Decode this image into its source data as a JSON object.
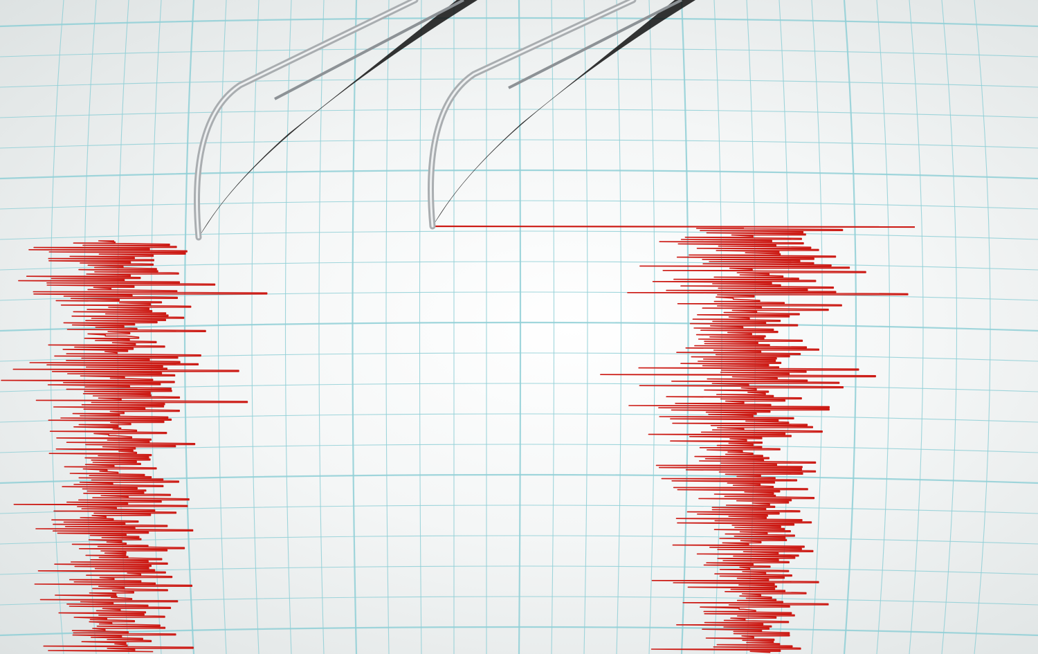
{
  "scene": {
    "subject": "seismograph",
    "colors": {
      "paper": "#f4f6f6",
      "grid": "#8fcfd6",
      "trace": "#cc1a14",
      "needle": "#a9adb0",
      "shadow": "#111111"
    },
    "traces": [
      {
        "name": "left-trace"
      },
      {
        "name": "right-trace"
      }
    ],
    "needles": [
      {
        "name": "left-needle"
      },
      {
        "name": "right-needle"
      }
    ]
  }
}
